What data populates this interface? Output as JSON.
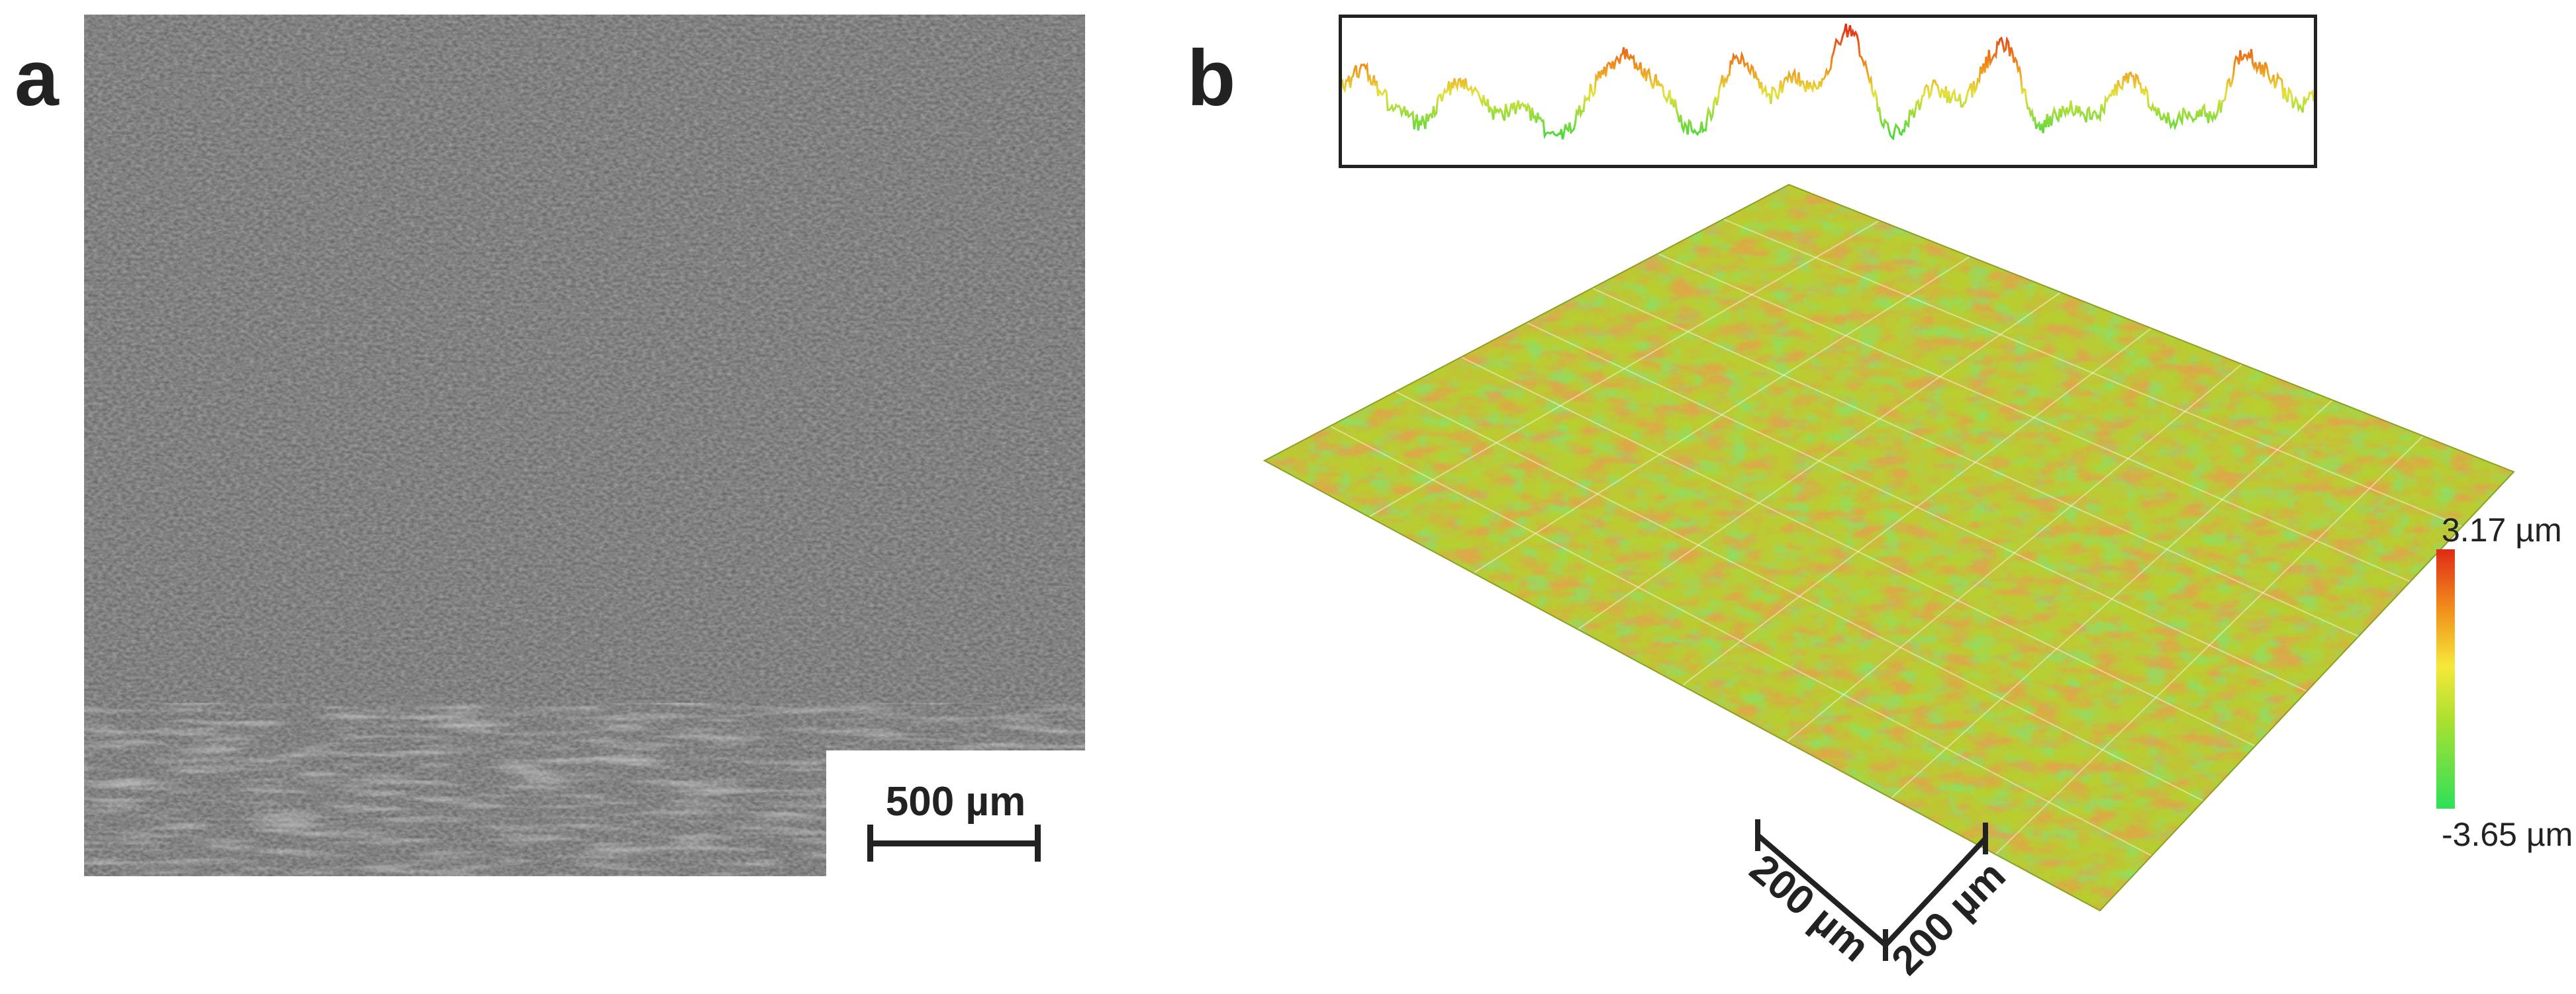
{
  "panels": {
    "a": {
      "label": "a",
      "scale_bar": "500 µm"
    },
    "b": {
      "label": "b",
      "axis_x_label": "200 µm",
      "axis_y_label": "200 µm",
      "colorbar": {
        "max_label": "3.17 µm",
        "min_label": "-3.65 µm",
        "colors": [
          "#e02a16",
          "#f08a1a",
          "#f6e83a",
          "#aee030",
          "#2ee05a"
        ]
      }
    }
  }
}
